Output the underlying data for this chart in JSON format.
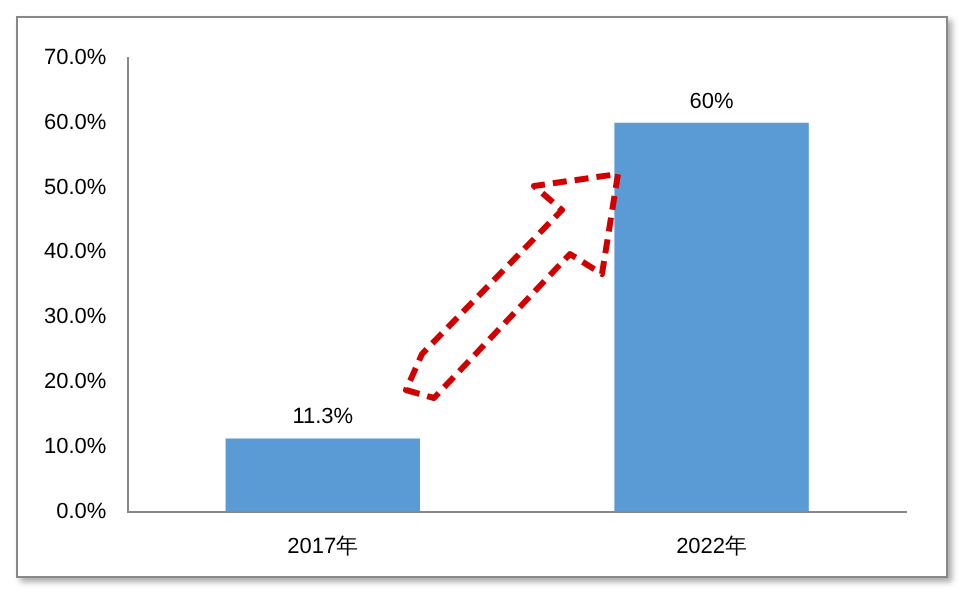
{
  "chart_data": {
    "type": "bar",
    "categories": [
      "2017年",
      "2022年"
    ],
    "values": [
      11.3,
      60
    ],
    "color": "#5b9bd5",
    "value_labels": [
      "11.3%",
      "60%"
    ],
    "ylim": [
      0,
      70
    ],
    "yticks": [
      {
        "value": 0,
        "label": "0.0%"
      },
      {
        "value": 10,
        "label": "10.0%"
      },
      {
        "value": 20,
        "label": "20.0%"
      },
      {
        "value": 30,
        "label": "30.0%"
      },
      {
        "value": 40,
        "label": "40.0%"
      },
      {
        "value": 50,
        "label": "50.0%"
      },
      {
        "value": 60,
        "label": "60.0%"
      },
      {
        "value": 70,
        "label": "70.0%"
      }
    ]
  }
}
